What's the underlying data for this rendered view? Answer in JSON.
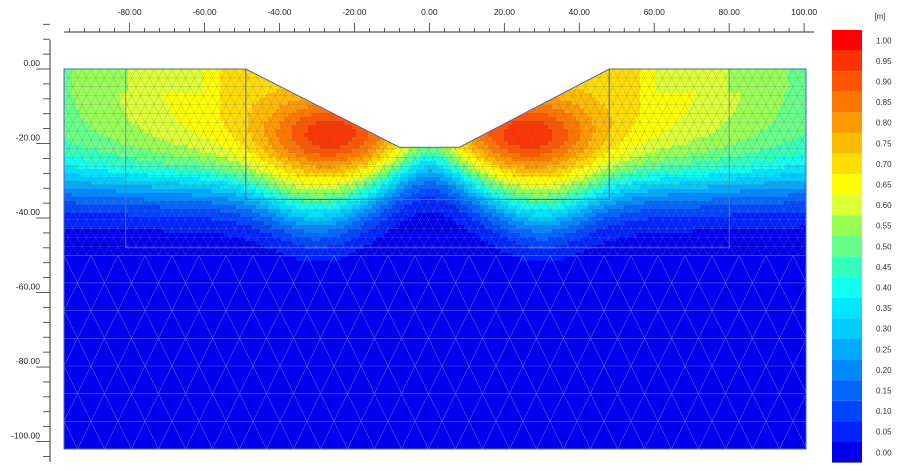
{
  "chart_data": {
    "type": "heatmap",
    "title": "",
    "xlabel": "",
    "ylabel": "",
    "x_ticks": [
      -80,
      -60,
      -40,
      -20,
      0,
      20,
      40,
      60,
      80,
      100
    ],
    "x_tick_labels": [
      "-80.00",
      "-60.00",
      "-40.00",
      "-20.00",
      "0.00",
      "20.00",
      "40.00",
      "60.00",
      "80.00",
      "100.00"
    ],
    "y_ticks": [
      0,
      -20,
      -40,
      -60,
      -80,
      -100
    ],
    "y_tick_labels": [
      "0.00",
      "-20.00",
      "-40.00",
      "-60.00",
      "-80.00",
      "-100.00"
    ],
    "xlim": [
      -97.5,
      100.5
    ],
    "ylim": [
      -102,
      0
    ],
    "legend": {
      "unit": "[m]",
      "position": "right",
      "levels": [
        1.0,
        0.95,
        0.9,
        0.85,
        0.8,
        0.75,
        0.7,
        0.65,
        0.6,
        0.55,
        0.5,
        0.45,
        0.4,
        0.35,
        0.3,
        0.25,
        0.2,
        0.15,
        0.1,
        0.05,
        0.0
      ],
      "level_labels": [
        "1.00",
        "0.95",
        "0.90",
        "0.85",
        "0.80",
        "0.75",
        "0.70",
        "0.65",
        "0.60",
        "0.55",
        "0.50",
        "0.45",
        "0.40",
        "0.35",
        "0.30",
        "0.25",
        "0.20",
        "0.15",
        "0.10",
        "0.05",
        "0.00"
      ],
      "colors": [
        "#ff0000",
        "#ff3300",
        "#ff5500",
        "#ff7700",
        "#ff9900",
        "#ffbb00",
        "#ffdd00",
        "#ffff00",
        "#ddff33",
        "#99ff55",
        "#66ff88",
        "#33ffbb",
        "#11ffee",
        "#00e6ff",
        "#00ccff",
        "#00aaff",
        "#0088ff",
        "#0066ff",
        "#0044ff",
        "#0022ff",
        "#0000ee"
      ]
    },
    "geometry": {
      "ground_surface_y": 0,
      "excavation": {
        "top_x": [
          -49,
          48
        ],
        "bottom_x": [
          -8,
          8
        ],
        "bottom_y": -21
      },
      "inner_wall": {
        "x": [
          -49,
          48
        ],
        "toe_y": -35
      },
      "outer_verticals_x": [
        -81,
        80
      ],
      "domain_x": [
        -97.5,
        100.5
      ],
      "domain_y": [
        -102,
        0
      ]
    }
  }
}
